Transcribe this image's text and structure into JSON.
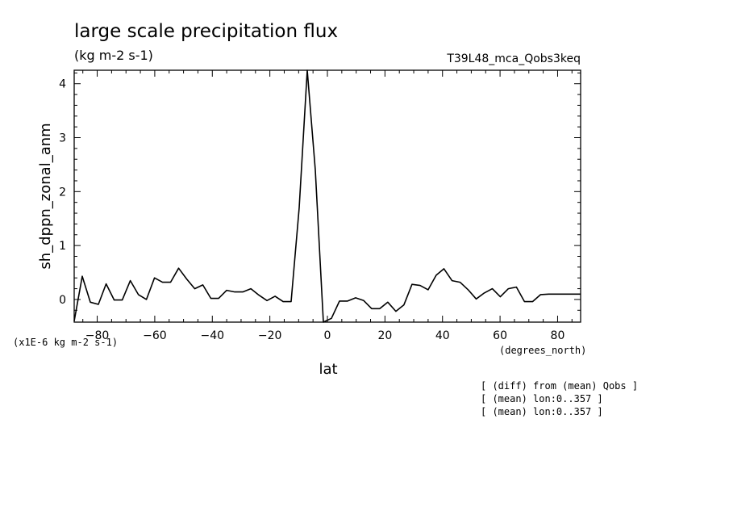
{
  "title": "large scale precipitation flux",
  "units": "(kg m-2 s-1)",
  "run_label": "T39L48_mca_Qobs3keq",
  "y_scale_note": "(x1E-6 kg m-2 s-1)",
  "x_units": "(degrees_north)",
  "notes": [
    "[ (diff) from (mean) Qobs ]",
    "[ (mean) lon:0..357 ]",
    "[ (mean) lon:0..357 ]"
  ],
  "chart_data": {
    "type": "line",
    "xlabel": "lat",
    "ylabel": "sh_dppn_zonal_anm",
    "xlim": [
      -88,
      88
    ],
    "ylim": [
      -0.42,
      4.25
    ],
    "x_ticks": [
      -80,
      -60,
      -40,
      -20,
      0,
      20,
      40,
      60,
      80
    ],
    "x_tick_labels": [
      "−80",
      "−60",
      "−40",
      "−20",
      "0",
      "20",
      "40",
      "60",
      "80"
    ],
    "y_ticks": [
      0,
      1,
      2,
      3,
      4
    ],
    "y_tick_labels": [
      "0",
      "1",
      "2",
      "3",
      "4"
    ],
    "grid": false,
    "series": [
      {
        "x": [
          -88,
          -85.2,
          -82.4,
          -79.6,
          -76.9,
          -74.1,
          -71.3,
          -68.5,
          -65.7,
          -62.9,
          -60.1,
          -57.3,
          -54.5,
          -51.7,
          -48.9,
          -46.1,
          -43.3,
          -40.5,
          -37.8,
          -35.0,
          -32.2,
          -29.4,
          -26.6,
          -23.8,
          -21.0,
          -18.2,
          -15.4,
          -12.6,
          -9.8,
          -7.0,
          -4.2,
          -1.4,
          1.4,
          4.2,
          7.0,
          9.8,
          12.6,
          15.4,
          18.2,
          21.0,
          23.8,
          26.6,
          29.4,
          32.2,
          35.0,
          37.8,
          40.5,
          43.3,
          46.1,
          48.9,
          51.7,
          54.5,
          57.3,
          60.1,
          62.9,
          65.7,
          68.5,
          71.3,
          74.1,
          76.9,
          79.6,
          82.4,
          85.2,
          88
        ],
        "y": [
          -0.4,
          0.43,
          -0.05,
          -0.09,
          0.29,
          -0.01,
          -0.01,
          0.35,
          0.09,
          0.0,
          0.4,
          0.32,
          0.32,
          0.58,
          0.38,
          0.2,
          0.27,
          0.02,
          0.02,
          0.17,
          0.14,
          0.14,
          0.2,
          0.08,
          -0.02,
          0.06,
          -0.04,
          -0.04,
          1.7,
          4.25,
          2.4,
          -0.42,
          -0.35,
          -0.03,
          -0.03,
          0.03,
          -0.02,
          -0.17,
          -0.17,
          -0.05,
          -0.22,
          -0.1,
          0.28,
          0.26,
          0.18,
          0.45,
          0.57,
          0.35,
          0.32,
          0.18,
          0.01,
          0.12,
          0.2,
          0.05,
          0.2,
          0.23,
          -0.04,
          -0.04,
          0.09,
          0.1,
          0.1,
          0.1,
          0.1,
          0.1
        ]
      }
    ]
  }
}
